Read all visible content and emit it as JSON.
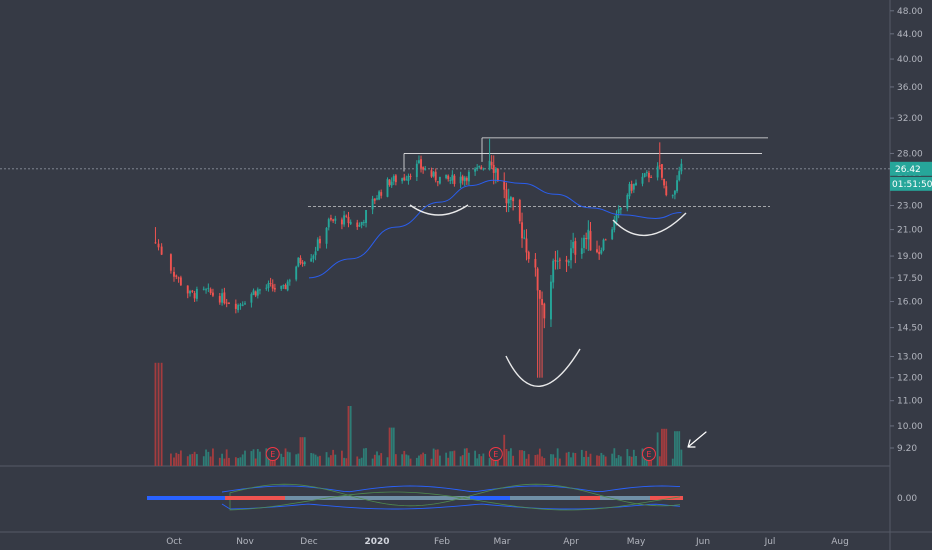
{
  "chart_data": {
    "type": "candlestick",
    "title": "",
    "price_axis": {
      "ticks": [
        "48.00",
        "44.00",
        "40.00",
        "36.00",
        "32.00",
        "28.00",
        "26.00",
        "23.00",
        "21.00",
        "19.00",
        "17.50",
        "16.00",
        "14.50",
        "13.00",
        "12.00",
        "11.00",
        "10.00",
        "9.20"
      ],
      "scale": "log",
      "ylim": [
        8.9,
        50.5
      ]
    },
    "indicator_axis": {
      "ticks": [
        "0.00"
      ]
    },
    "date_axis": {
      "labels": [
        "Oct",
        "Nov",
        "Dec",
        "2020",
        "Feb",
        "Mar",
        "Apr",
        "May",
        "Jun",
        "Jul",
        "Aug"
      ],
      "bold": [
        "2020"
      ]
    },
    "last_price": {
      "value": "26.42",
      "countdown": "01:51:50"
    },
    "earnings_marker": "E",
    "annotations": {
      "resistance_levels": [
        29.7,
        28.0
      ],
      "neckline": 22.9,
      "last_price_line": 26.42
    },
    "moving_average": [
      {
        "date": "2019-12-01",
        "value": 17.5
      },
      {
        "date": "2019-12-20",
        "value": 18.8
      },
      {
        "date": "2020-01-10",
        "value": 21.2
      },
      {
        "date": "2020-01-31",
        "value": 23.3
      },
      {
        "date": "2020-02-15",
        "value": 24.8
      },
      {
        "date": "2020-02-26",
        "value": 25.3
      },
      {
        "date": "2020-03-10",
        "value": 25.0
      },
      {
        "date": "2020-03-25",
        "value": 24.0
      },
      {
        "date": "2020-04-10",
        "value": 22.8
      },
      {
        "date": "2020-04-25",
        "value": 22.2
      },
      {
        "date": "2020-05-10",
        "value": 21.9
      },
      {
        "date": "2020-05-22",
        "value": 22.4
      }
    ],
    "price_path": [
      {
        "date": "2019-09-25",
        "value": 20.0
      },
      {
        "date": "2019-10-01",
        "value": 17.8
      },
      {
        "date": "2019-10-08",
        "value": 16.4
      },
      {
        "date": "2019-10-15",
        "value": 16.6
      },
      {
        "date": "2019-10-22",
        "value": 16.2
      },
      {
        "date": "2019-10-29",
        "value": 15.8
      },
      {
        "date": "2019-11-05",
        "value": 16.6
      },
      {
        "date": "2019-11-12",
        "value": 16.9
      },
      {
        "date": "2019-11-19",
        "value": 16.7
      },
      {
        "date": "2019-11-26",
        "value": 18.6
      },
      {
        "date": "2019-12-03",
        "value": 19.2
      },
      {
        "date": "2019-12-10",
        "value": 21.6
      },
      {
        "date": "2019-12-17",
        "value": 21.8
      },
      {
        "date": "2019-12-24",
        "value": 21.3
      },
      {
        "date": "2019-12-31",
        "value": 23.6
      },
      {
        "date": "2020-01-07",
        "value": 25.2
      },
      {
        "date": "2020-01-14",
        "value": 25.6
      },
      {
        "date": "2020-01-21",
        "value": 26.8
      },
      {
        "date": "2020-01-28",
        "value": 25.6
      },
      {
        "date": "2020-02-04",
        "value": 25.3
      },
      {
        "date": "2020-02-11",
        "value": 25.6
      },
      {
        "date": "2020-02-18",
        "value": 26.2
      },
      {
        "date": "2020-02-25",
        "value": 27.6
      },
      {
        "date": "2020-03-03",
        "value": 23.5
      },
      {
        "date": "2020-03-10",
        "value": 21.0
      },
      {
        "date": "2020-03-17",
        "value": 17.0
      },
      {
        "date": "2020-03-20",
        "value": 15.5
      },
      {
        "date": "2020-03-24",
        "value": 18.0
      },
      {
        "date": "2020-03-31",
        "value": 19.0
      },
      {
        "date": "2020-04-07",
        "value": 20.5
      },
      {
        "date": "2020-04-14",
        "value": 19.5
      },
      {
        "date": "2020-04-21",
        "value": 21.5
      },
      {
        "date": "2020-04-28",
        "value": 24.5
      },
      {
        "date": "2020-05-05",
        "value": 25.6
      },
      {
        "date": "2020-05-12",
        "value": 26.4
      },
      {
        "date": "2020-05-15",
        "value": 23.8
      },
      {
        "date": "2020-05-19",
        "value": 24.5
      },
      {
        "date": "2020-05-22",
        "value": 26.42
      }
    ],
    "volume": {
      "ylim": [
        0,
        10
      ],
      "spikes": [
        {
          "date": "2019-09-26",
          "value": 8.6
        },
        {
          "date": "2019-11-28",
          "value": 2.4
        },
        {
          "date": "2019-12-20",
          "value": 5.0
        },
        {
          "date": "2020-01-08",
          "value": 3.2
        },
        {
          "date": "2020-03-01",
          "value": 2.6
        },
        {
          "date": "2020-05-10",
          "value": 2.8
        },
        {
          "date": "2020-05-14",
          "value": 3.1
        },
        {
          "date": "2020-05-20",
          "value": 2.9
        }
      ]
    },
    "earnings_dates": [
      "2019-11-14",
      "2020-02-27",
      "2020-05-07"
    ],
    "pattern_arcs": [
      "left-shoulder",
      "head",
      "right-shoulder"
    ],
    "colors": {
      "background": "#363a45",
      "up": "#26a69a",
      "down": "#ef5350",
      "moving_average": "#2962ff",
      "axis_text": "#b2b5be",
      "last_price_tag": "#26a69a",
      "drawing": "#e9e9ea"
    },
    "icons": [
      "pointer-arrow-icon"
    ]
  }
}
